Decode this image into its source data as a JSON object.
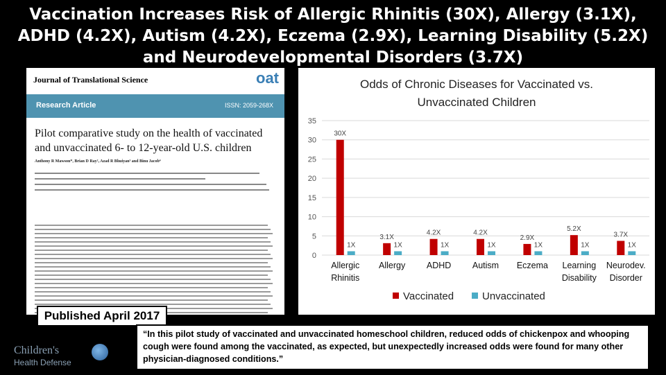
{
  "headline": "Vaccination Increases Risk of Allergic Rhinitis (30X), Allergy (3.1X), ADHD (4.2X), Autism (4.2X), Eczema (2.9X), Learning Disability (5.2X) and Neurodevelopmental Disorders (3.7X)",
  "paper": {
    "journal": "Journal of Translational Science",
    "logo": "oat",
    "section": "Research Article",
    "issn": "ISSN: 2059-268X",
    "title": "Pilot comparative study on the health of vaccinated and unvaccinated 6- to 12-year-old U.S. children",
    "authors": "Anthony R Mawson*, Brian D Ray², Azad R Bhuiyan³ and Binu Jacob⁴"
  },
  "published": "Published April 2017",
  "quote": "“In this pilot study of vaccinated and unvaccinated homeschool children, reduced odds of chickenpox and whooping cough were found among the vaccinated, as expected, but unexpectedly increased odds were found for many other physician-diagnosed  conditions.”",
  "org_logo": {
    "line1": "Children's",
    "line2": "Health Defense"
  },
  "colors": {
    "vaccinated": "#c00000",
    "unvaccinated": "#4bacc6",
    "grid": "#d9d9d9"
  },
  "chart_data": {
    "type": "bar",
    "title_line1": "Odds of Chronic Diseases for Vaccinated vs.",
    "title_line2": "Unvaccinated Children",
    "categories": [
      [
        "Allergic",
        "Rhinitis"
      ],
      [
        "Allergy"
      ],
      [
        "ADHD"
      ],
      [
        "Autism"
      ],
      [
        "Eczema"
      ],
      [
        "Learning",
        "Disability"
      ],
      [
        "Neurodev.",
        "Disorder"
      ]
    ],
    "series": [
      {
        "name": "Vaccinated",
        "values": [
          30,
          3.1,
          4.2,
          4.2,
          2.9,
          5.2,
          3.7
        ],
        "labels": [
          "30X",
          "3.1X",
          "4.2X",
          "4.2X",
          "2.9X",
          "5.2X",
          "3.7X"
        ]
      },
      {
        "name": "Unvaccinated",
        "values": [
          1,
          1,
          1,
          1,
          1,
          1,
          1
        ],
        "labels": [
          "1X",
          "1X",
          "1X",
          "1X",
          "1X",
          "1X",
          "1X"
        ]
      }
    ],
    "yticks": [
      0,
      5,
      10,
      15,
      20,
      25,
      30,
      35
    ],
    "ylim": [
      0,
      35
    ],
    "grid": true,
    "legend": "bottom"
  }
}
